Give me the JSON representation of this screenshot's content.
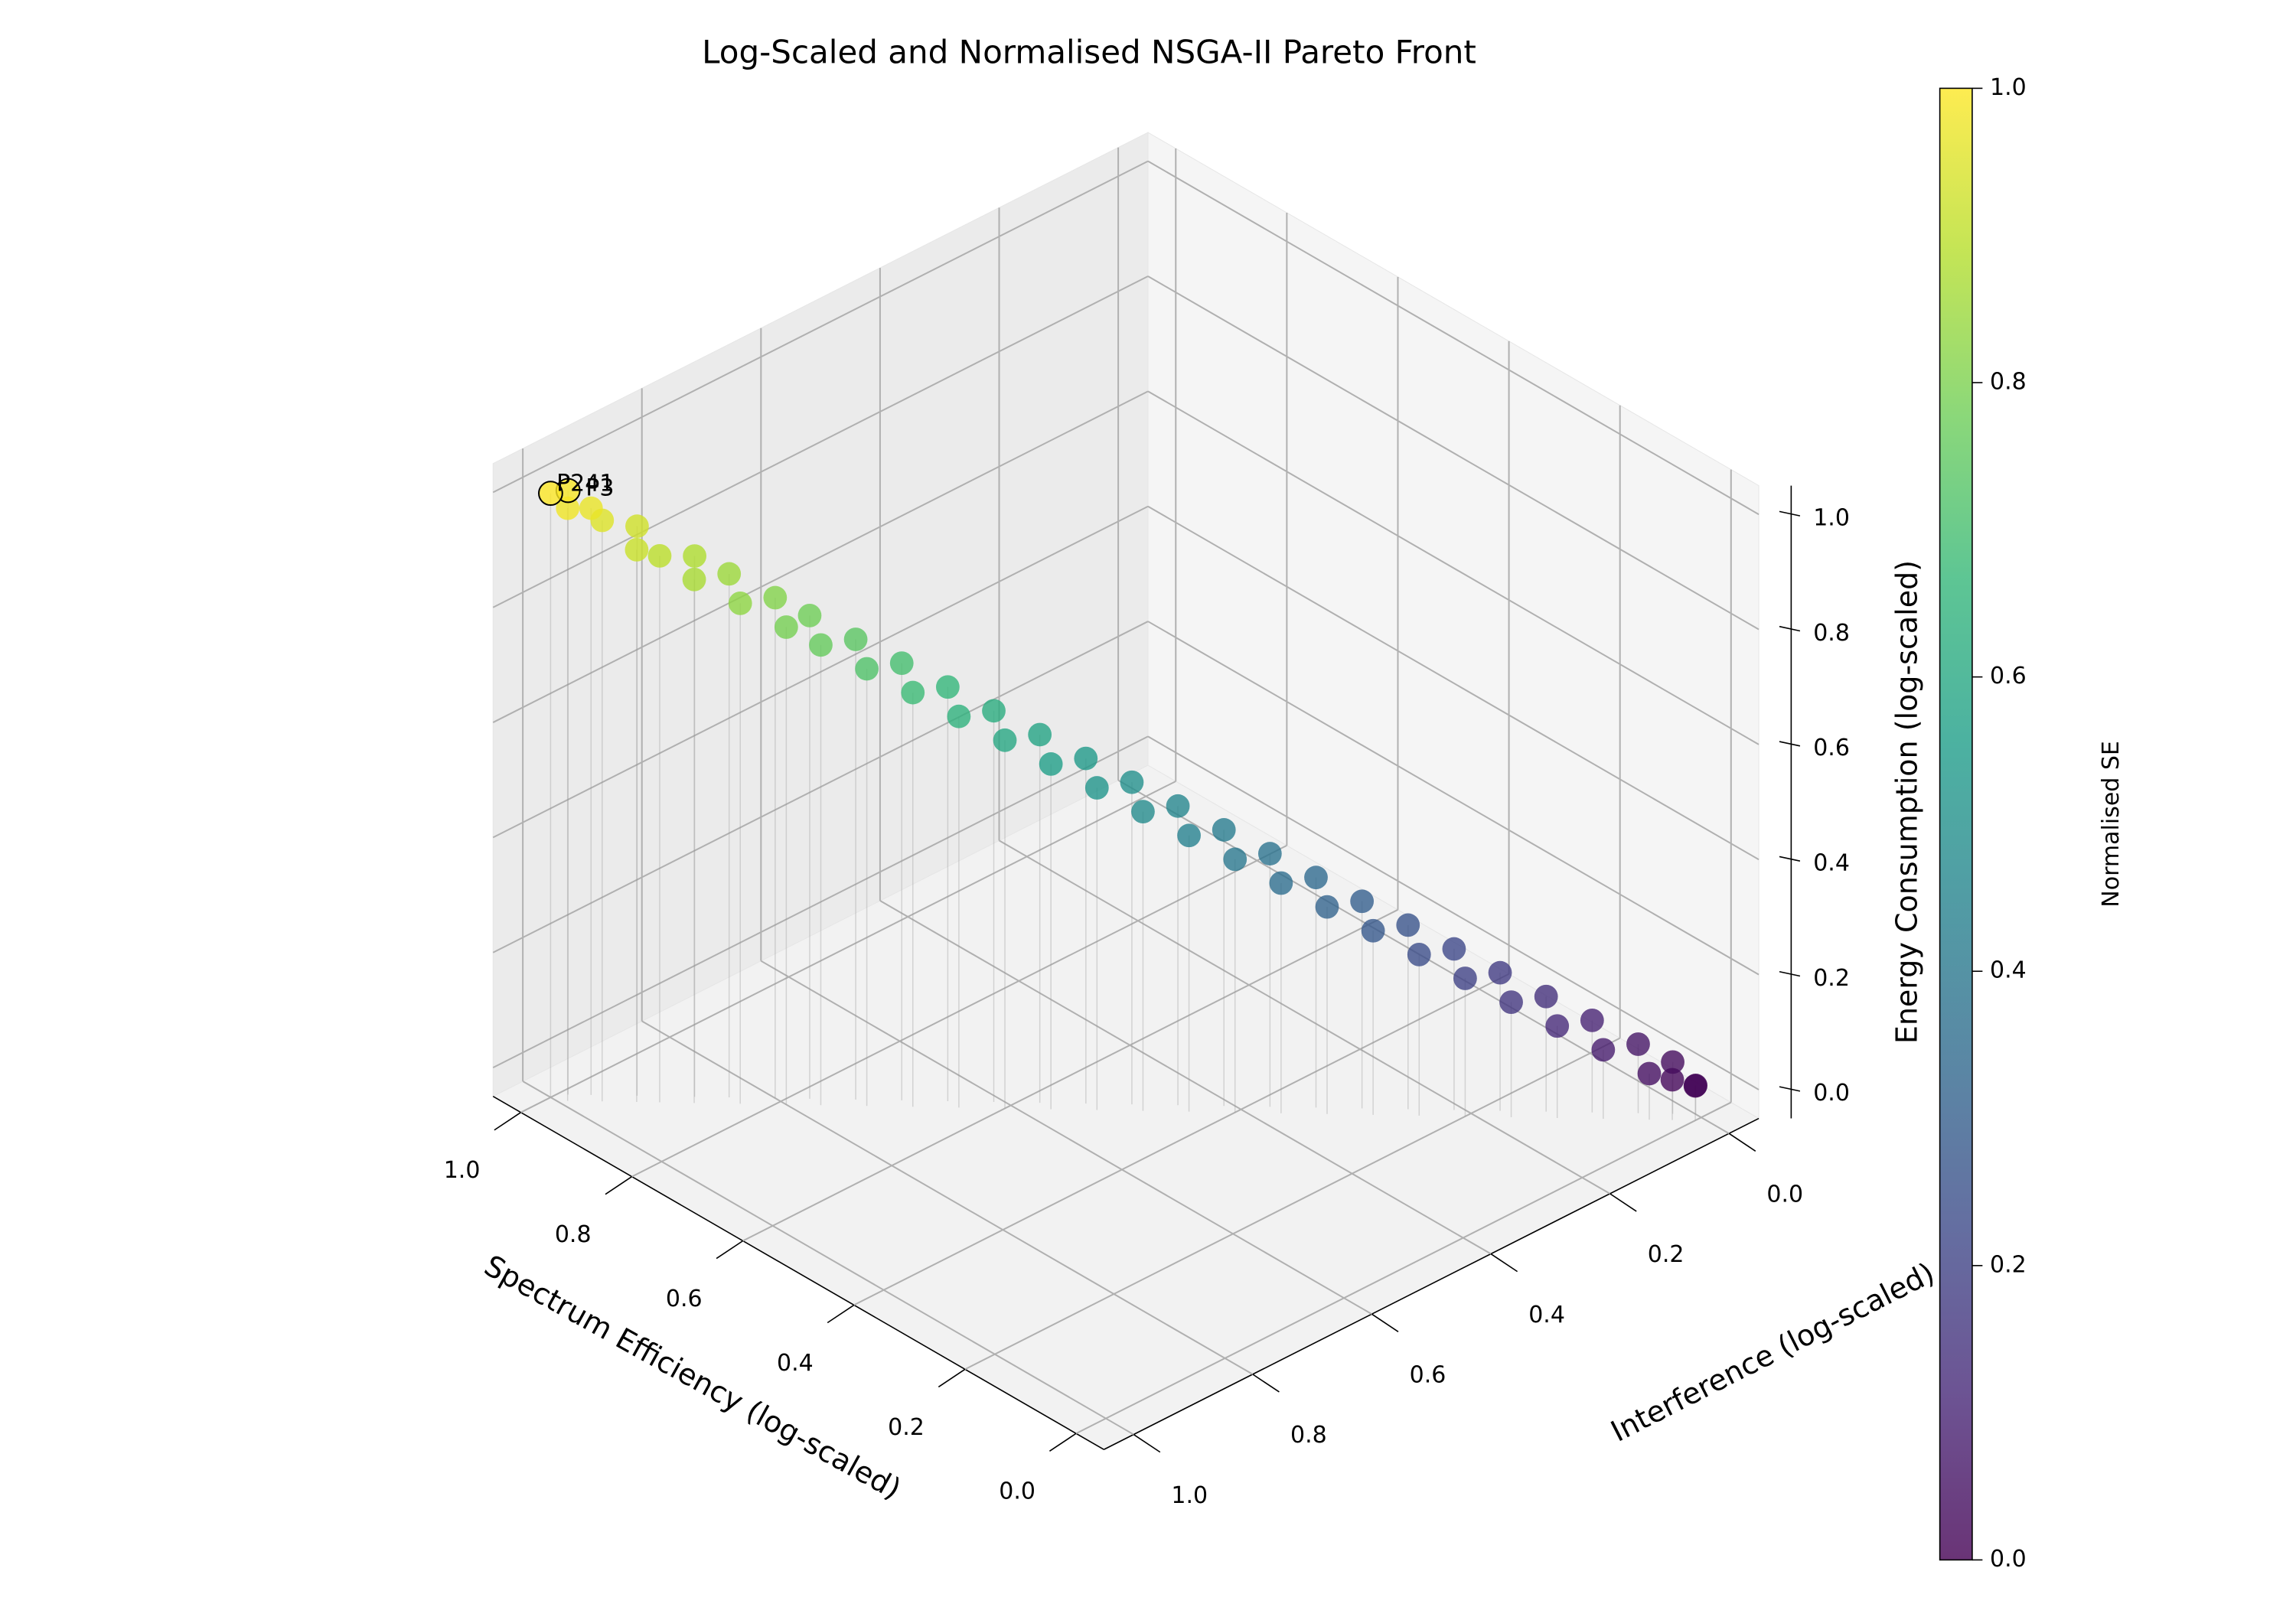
{
  "chart_data": {
    "type": "scatter3d",
    "title": "Log-Scaled and Normalised NSGA-II Pareto Front",
    "xlabel": "Spectrum Efficiency (log-scaled)",
    "ylabel": "Interference (log-scaled)",
    "zlabel": "Energy Consumption (log-scaled)",
    "colorbar_label": "Normalised SE",
    "colormap": "viridis",
    "xlim": [
      -0.05,
      1.05
    ],
    "ylim": [
      -0.05,
      1.05
    ],
    "zlim": [
      -0.05,
      1.05
    ],
    "clim": [
      0,
      1
    ],
    "xticks": [
      {
        "value": 0,
        "label": "0.0"
      },
      {
        "value": 0.2,
        "label": "0.2"
      },
      {
        "value": 0.4,
        "label": "0.4"
      },
      {
        "value": 0.6,
        "label": "0.6"
      },
      {
        "value": 0.8,
        "label": "0.8"
      },
      {
        "value": 1,
        "label": "1.0"
      }
    ],
    "yticks": [
      {
        "value": 0,
        "label": "0.0"
      },
      {
        "value": 0.2,
        "label": "0.2"
      },
      {
        "value": 0.4,
        "label": "0.4"
      },
      {
        "value": 0.6,
        "label": "0.6"
      },
      {
        "value": 0.8,
        "label": "0.8"
      },
      {
        "value": 1,
        "label": "1.0"
      }
    ],
    "zticks": [
      {
        "value": 0,
        "label": "0.0"
      },
      {
        "value": 0.2,
        "label": "0.2"
      },
      {
        "value": 0.4,
        "label": "0.4"
      },
      {
        "value": 0.6,
        "label": "0.6"
      },
      {
        "value": 0.8,
        "label": "0.8"
      },
      {
        "value": 1,
        "label": "1.0"
      }
    ],
    "cticks": [
      {
        "value": 0,
        "label": "0.0"
      },
      {
        "value": 0.2,
        "label": "0.2"
      },
      {
        "value": 0.4,
        "label": "0.4"
      },
      {
        "value": 0.6,
        "label": "0.6"
      },
      {
        "value": 0.8,
        "label": "0.8"
      },
      {
        "value": 1,
        "label": "1.0"
      }
    ],
    "grid": true,
    "annotations": [
      "P241",
      "P3"
    ],
    "x": [
      1.0,
      0.99,
      0.98,
      0.97,
      0.95,
      0.93,
      0.92,
      0.9,
      0.88,
      0.87,
      0.85,
      0.83,
      0.81,
      0.79,
      0.78,
      0.76,
      0.74,
      0.72,
      0.7,
      0.68,
      0.66,
      0.64,
      0.62,
      0.6,
      0.58,
      0.56,
      0.54,
      0.52,
      0.5,
      0.48,
      0.46,
      0.44,
      0.42,
      0.4,
      0.38,
      0.36,
      0.34,
      0.32,
      0.3,
      0.28,
      0.26,
      0.24,
      0.22,
      0.2,
      0.18,
      0.16,
      0.14,
      0.12,
      0.1,
      0.08,
      0.06,
      0.04,
      0.03,
      0.02,
      0.01,
      0.0
    ],
    "y": [
      1.0,
      0.98,
      0.99,
      0.96,
      0.96,
      0.92,
      0.93,
      0.91,
      0.87,
      0.88,
      0.84,
      0.84,
      0.8,
      0.8,
      0.77,
      0.77,
      0.73,
      0.73,
      0.69,
      0.69,
      0.65,
      0.65,
      0.61,
      0.61,
      0.57,
      0.57,
      0.53,
      0.53,
      0.49,
      0.49,
      0.45,
      0.45,
      0.41,
      0.41,
      0.37,
      0.37,
      0.33,
      0.33,
      0.29,
      0.29,
      0.25,
      0.25,
      0.21,
      0.21,
      0.17,
      0.17,
      0.13,
      0.13,
      0.09,
      0.09,
      0.05,
      0.05,
      0.02,
      0.03,
      0.0,
      0.01
    ],
    "z": [
      1.0,
      1.0,
      0.98,
      0.97,
      0.96,
      0.94,
      0.91,
      0.9,
      0.89,
      0.86,
      0.86,
      0.82,
      0.82,
      0.78,
      0.79,
      0.75,
      0.75,
      0.71,
      0.71,
      0.67,
      0.67,
      0.63,
      0.63,
      0.59,
      0.59,
      0.55,
      0.55,
      0.51,
      0.51,
      0.47,
      0.47,
      0.43,
      0.43,
      0.39,
      0.39,
      0.35,
      0.35,
      0.31,
      0.31,
      0.27,
      0.27,
      0.23,
      0.23,
      0.19,
      0.19,
      0.15,
      0.15,
      0.11,
      0.11,
      0.07,
      0.07,
      0.03,
      0.04,
      0.02,
      0.0,
      0.01
    ],
    "color_values": [
      1.0,
      0.99,
      0.98,
      0.97,
      0.95,
      0.93,
      0.92,
      0.9,
      0.88,
      0.87,
      0.85,
      0.83,
      0.81,
      0.79,
      0.78,
      0.76,
      0.74,
      0.72,
      0.7,
      0.68,
      0.66,
      0.64,
      0.62,
      0.6,
      0.58,
      0.56,
      0.54,
      0.52,
      0.5,
      0.48,
      0.46,
      0.44,
      0.42,
      0.4,
      0.38,
      0.36,
      0.34,
      0.32,
      0.3,
      0.28,
      0.26,
      0.24,
      0.22,
      0.2,
      0.18,
      0.16,
      0.14,
      0.12,
      0.1,
      0.08,
      0.06,
      0.04,
      0.03,
      0.02,
      0.01,
      0.0
    ]
  }
}
